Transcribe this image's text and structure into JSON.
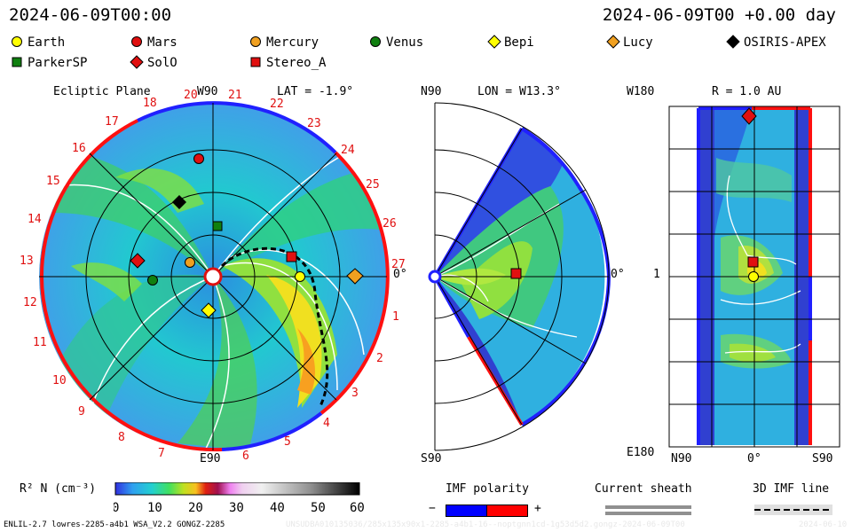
{
  "header": {
    "datetime": "2024-06-09T00:00",
    "elapsed": "2024-06-09T00 +0.00 day"
  },
  "legend": [
    {
      "name": "Earth",
      "shape": "circle",
      "color": "#ffff00"
    },
    {
      "name": "Mars",
      "shape": "circle",
      "color": "#e01010"
    },
    {
      "name": "Mercury",
      "shape": "circle",
      "color": "#f0a020"
    },
    {
      "name": "Venus",
      "shape": "circle",
      "color": "#108010"
    },
    {
      "name": "Bepi",
      "shape": "diamond",
      "color": "#ffff00"
    },
    {
      "name": "Lucy",
      "shape": "diamond",
      "color": "#f0a020"
    },
    {
      "name": "OSIRIS-APEX",
      "shape": "diamond",
      "color": "#000000"
    },
    {
      "name": "ParkerSP",
      "shape": "square",
      "color": "#108010"
    },
    {
      "name": "SolO",
      "shape": "diamond",
      "color": "#e01010"
    },
    {
      "name": "Stereo_A",
      "shape": "square",
      "color": "#e01010"
    }
  ],
  "ecliptic": {
    "title": "Ecliptic Plane",
    "lat": "LAT = -1.9°",
    "top_label": "W90",
    "bottom_label": "E90",
    "right_label": "0°",
    "ticks": [
      "20",
      "21",
      "22",
      "23",
      "24",
      "25",
      "26",
      "27",
      "1",
      "2",
      "3",
      "4",
      "5",
      "6",
      "7",
      "8",
      "9",
      "10",
      "11",
      "12",
      "13",
      "14",
      "15",
      "16",
      "17",
      "18",
      "19"
    ]
  },
  "meridional": {
    "lon": "LON = W13.3°",
    "top_label": "N90",
    "bottom_label": "S90",
    "right_label": "0°"
  },
  "radial": {
    "r": "R = 1.0 AU",
    "top_label": "W180",
    "bottom_label": "E180",
    "left_label": "1",
    "x_labels": [
      "N90",
      "0°",
      "S90"
    ]
  },
  "colorbar": {
    "label": "R² N (cm⁻³)",
    "ticks": [
      "0",
      "10",
      "20",
      "30",
      "40",
      "50",
      "60"
    ]
  },
  "imf": {
    "title": "IMF polarity",
    "minus": "−",
    "plus": "+",
    "minus_color": "#0000ff",
    "plus_color": "#ff0000"
  },
  "sheath": {
    "title": "Current sheath"
  },
  "imf3d": {
    "title": "3D IMF line"
  },
  "footer": {
    "model": "ENLIL-2.7 lowres-2285-a4b1 WSA_V2.2 GONGZ-2285",
    "run": "UNSUDBA010135036/285x135x90x1-2285-a4b1-16--noptgnn1cd-1g53d5d2.gongz-2024-06-09T00",
    "stamp": "2024-06-10"
  }
}
